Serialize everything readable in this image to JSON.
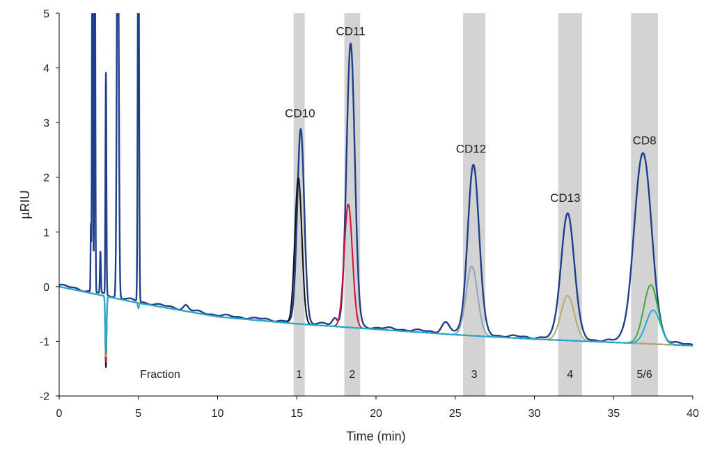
{
  "chart_data": {
    "type": "line",
    "title": "",
    "xlabel": "Time (min)",
    "ylabel": "µRIU",
    "xlim": [
      0,
      40
    ],
    "ylim": [
      -2,
      5
    ],
    "xticks": [
      "0",
      "5",
      "10",
      "15",
      "20",
      "25",
      "30",
      "35",
      "40"
    ],
    "yticks": [
      "-2",
      "-1",
      "0",
      "1",
      "2",
      "3",
      "4",
      "5"
    ],
    "grid": false,
    "legend": "none",
    "baseline": [
      [
        0,
        0
      ],
      [
        2,
        -0.12
      ],
      [
        5,
        -0.3
      ],
      [
        10,
        -0.55
      ],
      [
        15,
        -0.68
      ],
      [
        20,
        -0.78
      ],
      [
        25,
        -0.88
      ],
      [
        30,
        -0.96
      ],
      [
        35,
        -1.02
      ],
      [
        40,
        -1.08
      ]
    ],
    "series": [
      {
        "color": "#1f3f8a",
        "offset": 0.03,
        "peaks": [
          [
            2.0,
            1.2,
            0.02
          ],
          [
            2.1,
            8,
            0.03
          ],
          [
            2.25,
            8,
            0.03
          ],
          [
            2.6,
            0.75,
            0.03
          ],
          [
            2.95,
            4.05,
            0.03
          ],
          [
            3.7,
            8,
            0.06
          ],
          [
            5.0,
            8,
            0.04
          ],
          [
            8.0,
            0.08,
            0.15
          ],
          [
            15.25,
            3.55,
            0.22
          ],
          [
            17.4,
            0.12,
            0.15
          ],
          [
            18.4,
            5.15,
            0.26
          ],
          [
            24.4,
            0.18,
            0.25
          ],
          [
            26.15,
            3.1,
            0.36
          ],
          [
            32.1,
            2.3,
            0.42
          ],
          [
            36.85,
            3.45,
            0.55
          ]
        ]
      },
      {
        "color": "#111111",
        "offset": 0,
        "peaks": [
          [
            2.95,
            -1.3,
            0.04
          ],
          [
            15.1,
            2.67,
            0.22
          ]
        ]
      },
      {
        "color": "#d0103a",
        "offset": 0,
        "peaks": [
          [
            2.95,
            -1.2,
            0.04
          ],
          [
            18.25,
            2.25,
            0.26
          ]
        ]
      },
      {
        "color": "#8ea3b5",
        "offset": 0,
        "peaks": [
          [
            2.95,
            -1.1,
            0.04
          ],
          [
            26.05,
            1.27,
            0.36
          ]
        ]
      },
      {
        "color": "#b8a96a",
        "offset": 0,
        "peaks": [
          [
            2.95,
            -1.1,
            0.04
          ],
          [
            32.1,
            0.82,
            0.42
          ]
        ]
      },
      {
        "color": "#3aaa3a",
        "offset": 0,
        "peaks": [
          [
            2.95,
            -1.05,
            0.04
          ],
          [
            37.35,
            1.08,
            0.45
          ]
        ]
      },
      {
        "color": "#22a8d8",
        "offset": 0,
        "peaks": [
          [
            2.95,
            -1.0,
            0.04
          ],
          [
            5.0,
            -0.1,
            0.04
          ],
          [
            37.5,
            0.62,
            0.45
          ]
        ]
      }
    ],
    "fractions": [
      {
        "label": "1",
        "range": [
          14.8,
          15.5
        ]
      },
      {
        "label": "2",
        "range": [
          18.0,
          19.0
        ]
      },
      {
        "label": "3",
        "range": [
          25.5,
          26.9
        ]
      },
      {
        "label": "4",
        "range": [
          31.5,
          33.0
        ]
      },
      {
        "label": "5/6",
        "range": [
          36.1,
          37.8
        ]
      }
    ],
    "fraction_label": "Fraction",
    "fraction_band_color": "#d3d3d3",
    "annotations": [
      {
        "text": "CD10",
        "x": 15.2,
        "y": 3.1
      },
      {
        "text": "CD11",
        "x": 18.4,
        "y": 4.6
      },
      {
        "text": "CD12",
        "x": 26.0,
        "y": 2.45
      },
      {
        "text": "CD13",
        "x": 31.95,
        "y": 1.55
      },
      {
        "text": "CD8",
        "x": 36.95,
        "y": 2.6
      }
    ]
  }
}
